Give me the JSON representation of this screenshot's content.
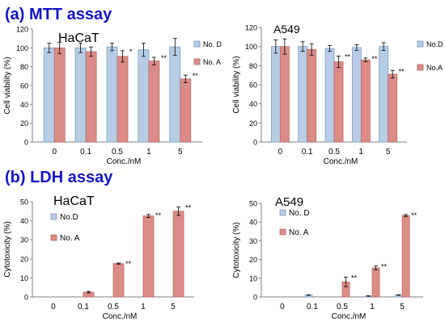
{
  "headings": {
    "mtt": "(a) MTT assay",
    "ldh": "(b) LDH assay"
  },
  "colors": {
    "heading": "#1414c8",
    "series_d": "#b7cde6",
    "series_a": "#dc8c87",
    "edge_d": "#7f9cc0",
    "edge_a": "#b86a66"
  },
  "chart_data": [
    {
      "type": "bar",
      "panel": "mtt-hacat",
      "title": "HaCaT",
      "xlabel": "Conc./nM",
      "ylabel": "Cell viability (%)",
      "ylim": [
        0,
        120
      ],
      "yticks": [
        0,
        20,
        40,
        60,
        80,
        100,
        120
      ],
      "categories": [
        "0",
        "0.1",
        "0.5",
        "1",
        "5"
      ],
      "legend_position": "right",
      "series": [
        {
          "name": "No. D",
          "values": [
            100,
            100,
            101,
            98,
            101
          ],
          "errors": [
            5,
            5,
            4,
            7,
            9
          ]
        },
        {
          "name": "No. A",
          "values": [
            100,
            96,
            91,
            86,
            67
          ],
          "errors": [
            6,
            5,
            6,
            4,
            4
          ]
        }
      ],
      "annotations": [
        {
          "category": "0.5",
          "text": "*"
        },
        {
          "category": "1",
          "text": "**"
        },
        {
          "category": "5",
          "text": "**"
        }
      ]
    },
    {
      "type": "bar",
      "panel": "mtt-a549",
      "title": "A549",
      "xlabel": "Conc./nM",
      "ylabel": "Cell viability (%)",
      "ylim": [
        0,
        120
      ],
      "yticks": [
        0,
        20,
        40,
        60,
        80,
        100,
        120
      ],
      "categories": [
        "0",
        "0.1",
        "0.5",
        "1",
        "5"
      ],
      "legend_position": "right",
      "series": [
        {
          "name": "No.D",
          "values": [
            100,
            100,
            98,
            99,
            100
          ],
          "errors": [
            7,
            5,
            3,
            3,
            4
          ]
        },
        {
          "name": "No.A",
          "values": [
            100,
            97,
            84,
            86,
            71
          ],
          "errors": [
            8,
            6,
            6,
            2,
            4
          ]
        }
      ],
      "annotations": [
        {
          "category": "0.5",
          "text": "**"
        },
        {
          "category": "1",
          "text": "**"
        },
        {
          "category": "5",
          "text": "**"
        }
      ]
    },
    {
      "type": "bar",
      "panel": "ldh-hacat",
      "title": "HaCaT",
      "xlabel": "Conc./nM",
      "ylabel": "Cytotoxicity (%)",
      "ylim": [
        0,
        50
      ],
      "yticks": [
        0,
        10,
        20,
        30,
        40,
        50
      ],
      "categories": [
        "0",
        "0.1",
        "0.5",
        "1",
        "5"
      ],
      "legend_position": "top-left",
      "series": [
        {
          "name": "No.D",
          "values": [
            0,
            0,
            0,
            0,
            0
          ],
          "errors": [
            0,
            0,
            0,
            0,
            0
          ]
        },
        {
          "name": "No. A",
          "values": [
            0,
            2.5,
            17.5,
            42.5,
            45
          ],
          "errors": [
            0,
            0.4,
            0.3,
            0.8,
            2.2
          ]
        }
      ],
      "annotations": [
        {
          "category": "0.5",
          "text": "**"
        },
        {
          "category": "1",
          "text": "**"
        },
        {
          "category": "5",
          "text": "**"
        }
      ]
    },
    {
      "type": "bar",
      "panel": "ldh-a549",
      "title": "A549",
      "xlabel": "Conc./nM",
      "ylabel": "Cytotoxicity (%)",
      "ylim": [
        0,
        50
      ],
      "yticks": [
        0,
        10,
        20,
        30,
        40,
        50
      ],
      "categories": [
        "0",
        "0.1",
        "0.5",
        "1",
        "5"
      ],
      "legend_position": "top-left",
      "series": [
        {
          "name": "No. D",
          "values": [
            0,
            1,
            0,
            0.5,
            1
          ],
          "errors": [
            0,
            0.1,
            0,
            0.1,
            0.1
          ]
        },
        {
          "name": "No. A",
          "values": [
            0,
            0,
            8,
            15.5,
            43.5
          ],
          "errors": [
            0,
            0,
            2.5,
            1,
            0.5
          ]
        }
      ],
      "annotations": [
        {
          "category": "0.5",
          "text": "**"
        },
        {
          "category": "1",
          "text": "**"
        },
        {
          "category": "5",
          "text": "**"
        }
      ]
    }
  ]
}
